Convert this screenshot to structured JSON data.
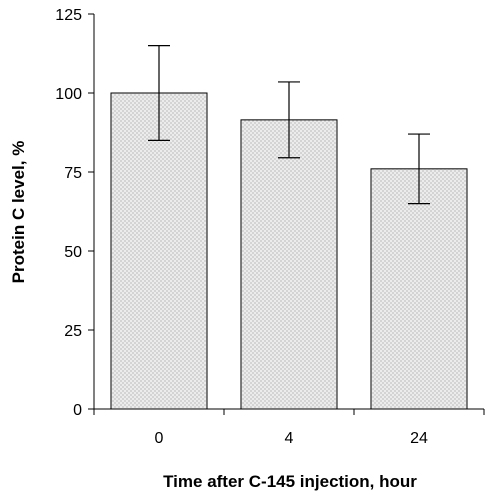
{
  "chart_data": {
    "type": "bar",
    "title": "",
    "xlabel": "Time after C-145 injection, hour",
    "ylabel": "Protein C level, %",
    "categories": [
      "0",
      "4",
      "24"
    ],
    "values": [
      100,
      91.5,
      76
    ],
    "error": [
      15,
      12,
      11
    ],
    "ylim": [
      0,
      125
    ],
    "yticks": [
      "0",
      "25",
      "50",
      "75",
      "100",
      "125"
    ],
    "grid": false,
    "legend": "none",
    "bar_fill": "dotted-light-gray",
    "colors": {
      "bar_fill": "#ececec",
      "bar_dots": "#9a9a9a",
      "axis": "#000000"
    }
  }
}
